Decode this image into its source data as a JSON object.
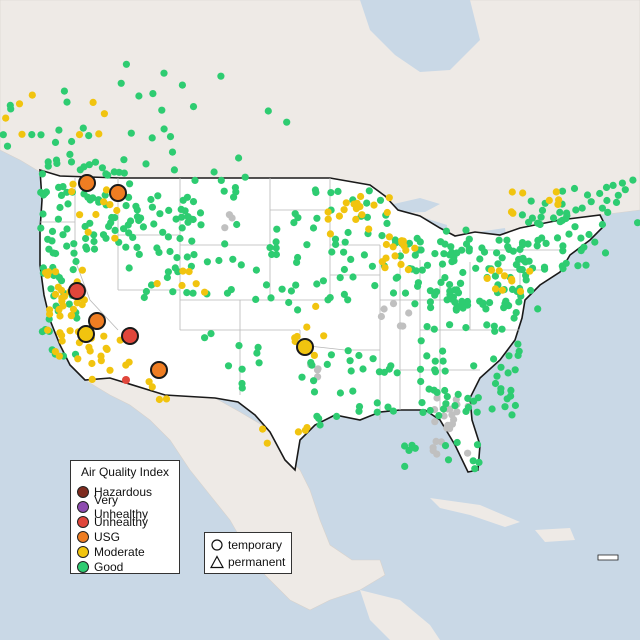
{
  "legend": {
    "title": "Air Quality Index",
    "items": [
      {
        "label": "Hazardous",
        "color": "#7e2b1f"
      },
      {
        "label": "Very Unhealthy",
        "color": "#8e4bb0"
      },
      {
        "label": "Unhealthy",
        "color": "#e0463b"
      },
      {
        "label": "USG",
        "color": "#ef7d22"
      },
      {
        "label": "Moderate",
        "color": "#f1c40f"
      },
      {
        "label": "Good",
        "color": "#2ecc71"
      }
    ]
  },
  "monitor_types": {
    "items": [
      {
        "label": "temporary",
        "symbol": "circle"
      },
      {
        "label": "permanent",
        "symbol": "triangle"
      }
    ]
  },
  "colors": {
    "water": "#c9d8e6",
    "land": "#eeeae6",
    "us_land": "#ffffff",
    "border": "#1a1a1a",
    "state_lines": "#b8b8b8",
    "no_data": "#c0c0c0"
  }
}
